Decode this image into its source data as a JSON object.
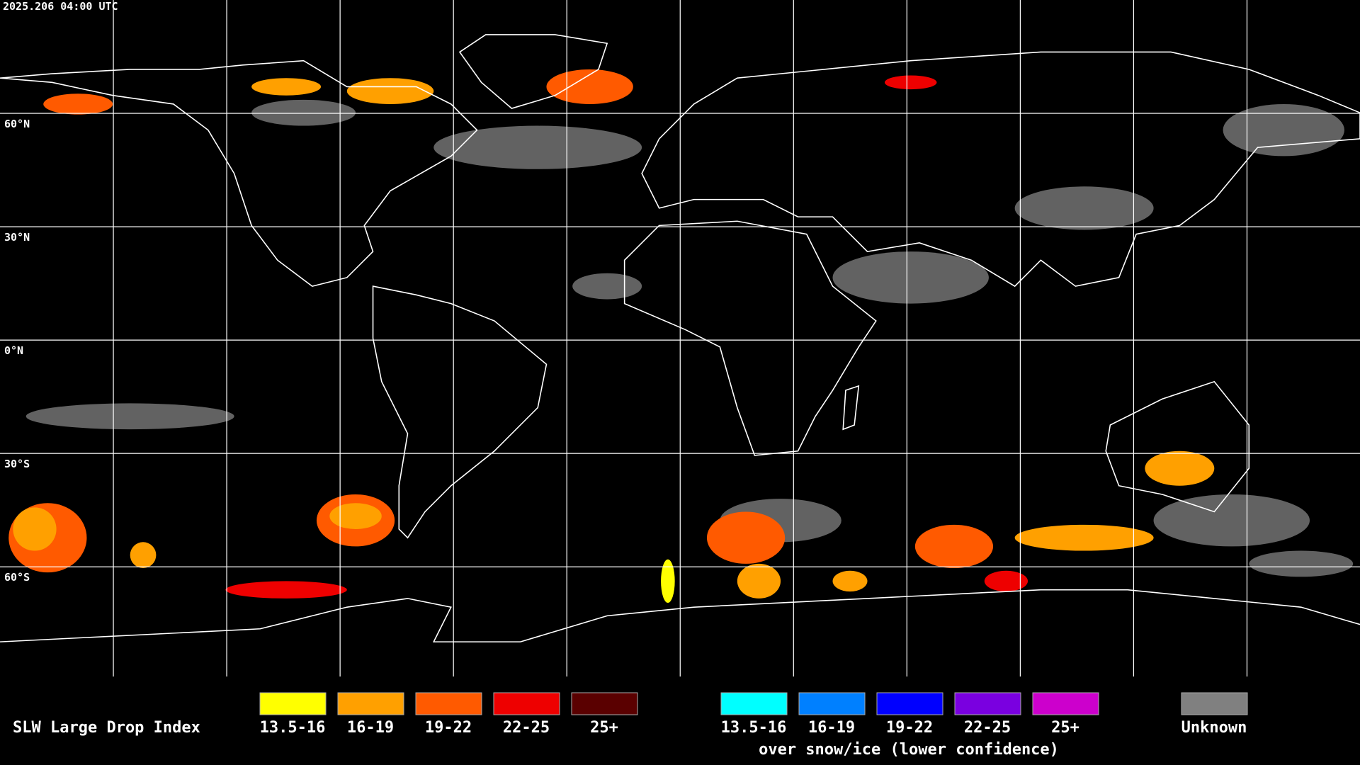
{
  "header": {
    "timestamp": "2025.206 04:00 UTC"
  },
  "map": {
    "latitude_labels": [
      "60°N",
      "30°N",
      "0°N",
      "30°S",
      "60°S"
    ]
  },
  "legend": {
    "title": "SLW Large Drop Index",
    "items": [
      {
        "label": "13.5-16",
        "color": "#ffff00"
      },
      {
        "label": "16-19",
        "color": "#ffa000"
      },
      {
        "label": "19-22",
        "color": "#ff5a00"
      },
      {
        "label": "22-25",
        "color": "#ee0000"
      },
      {
        "label": "25+",
        "color": "#5a0000"
      }
    ],
    "snow_ice_items": [
      {
        "label": "13.5-16",
        "color": "#00ffff"
      },
      {
        "label": "16-19",
        "color": "#0080ff"
      },
      {
        "label": "19-22",
        "color": "#0000ff"
      },
      {
        "label": "22-25",
        "color": "#7a00e0"
      },
      {
        "label": "25+",
        "color": "#cc00cc"
      }
    ],
    "snow_ice_caption": "over snow/ice (lower confidence)",
    "unknown": {
      "label": "Unknown",
      "color": "#808080"
    }
  }
}
